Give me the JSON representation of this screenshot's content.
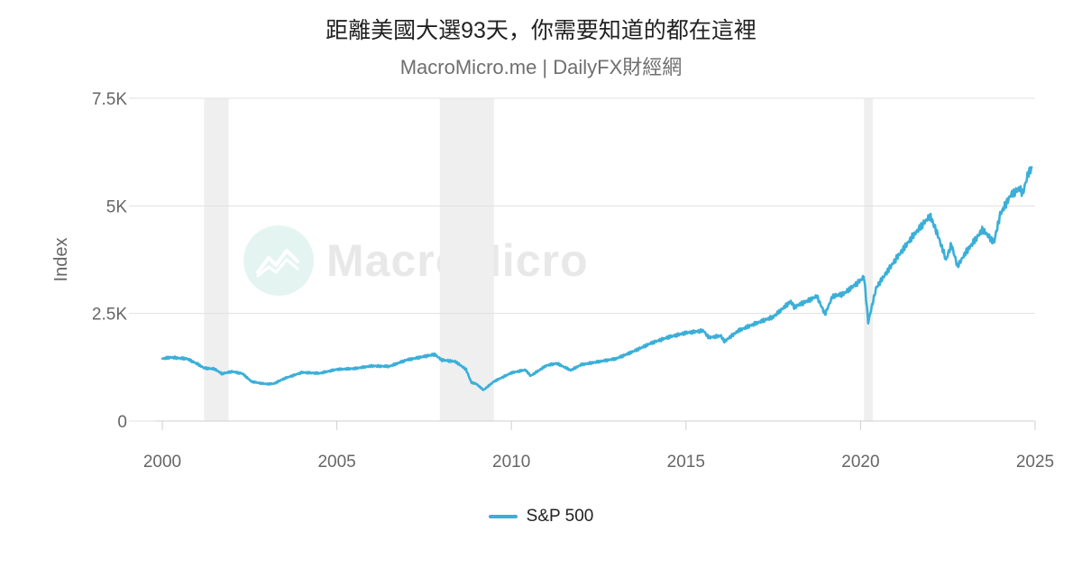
{
  "header": {
    "title": "距離美國大選93天，你需要知道的都在這裡",
    "subtitle": "MacroMicro.me | DailyFX財經網"
  },
  "watermark": {
    "text": "MacroMicro"
  },
  "colors": {
    "series": "#3bafd8",
    "recession": "#efefef",
    "grid": "#e0e0e0"
  },
  "chart_data": {
    "type": "line",
    "title": "距離美國大選93天，你需要知道的都在這裡",
    "subtitle": "MacroMicro.me | DailyFX財經網",
    "ylabel": "Index",
    "xlabel": "",
    "xlim": [
      2000,
      2025
    ],
    "ylim": [
      0,
      7500
    ],
    "yticks": [
      0,
      2500,
      5000,
      7500
    ],
    "ytick_labels": [
      "0",
      "2.5K",
      "5K",
      "7.5K"
    ],
    "xticks": [
      2000,
      2005,
      2010,
      2015,
      2020,
      2025
    ],
    "xtick_labels": [
      "2000",
      "2005",
      "2010",
      "2015",
      "2020",
      "2025"
    ],
    "grid": true,
    "legend_position": "bottom-center",
    "shaded_periods": [
      [
        2001.2,
        2001.9
      ],
      [
        2007.95,
        2009.5
      ],
      [
        2020.1,
        2020.35
      ]
    ],
    "series": [
      {
        "name": "S&P 500",
        "x": [
          2000.0,
          2000.25,
          2000.5,
          2000.7,
          2001.0,
          2001.2,
          2001.5,
          2001.7,
          2002.0,
          2002.3,
          2002.55,
          2002.8,
          2003.0,
          2003.2,
          2003.5,
          2004.0,
          2004.5,
          2005.0,
          2005.5,
          2006.0,
          2006.5,
          2007.0,
          2007.5,
          2007.8,
          2008.0,
          2008.4,
          2008.7,
          2008.85,
          2009.0,
          2009.2,
          2009.5,
          2010.0,
          2010.4,
          2010.55,
          2011.0,
          2011.3,
          2011.7,
          2012.0,
          2012.5,
          2013.0,
          2013.5,
          2014.0,
          2014.5,
          2015.0,
          2015.5,
          2015.65,
          2016.0,
          2016.1,
          2016.5,
          2017.0,
          2017.5,
          2018.0,
          2018.1,
          2018.5,
          2018.75,
          2018.98,
          2019.2,
          2019.5,
          2019.9,
          2020.1,
          2020.22,
          2020.45,
          2020.7,
          2021.0,
          2021.5,
          2021.99,
          2022.2,
          2022.45,
          2022.6,
          2022.78,
          2023.0,
          2023.5,
          2023.82,
          2024.0,
          2024.3,
          2024.55,
          2024.65,
          2024.8,
          2024.9
        ],
        "y": [
          1450,
          1480,
          1460,
          1450,
          1330,
          1230,
          1210,
          1100,
          1150,
          1100,
          920,
          880,
          860,
          870,
          990,
          1130,
          1110,
          1200,
          1220,
          1280,
          1270,
          1420,
          1500,
          1550,
          1420,
          1380,
          1200,
          900,
          860,
          720,
          920,
          1120,
          1190,
          1050,
          1290,
          1340,
          1180,
          1310,
          1380,
          1450,
          1620,
          1810,
          1950,
          2050,
          2100,
          1940,
          1980,
          1850,
          2100,
          2270,
          2420,
          2780,
          2650,
          2800,
          2900,
          2480,
          2900,
          2950,
          3200,
          3350,
          2300,
          3100,
          3400,
          3750,
          4300,
          4770,
          4350,
          3750,
          4100,
          3600,
          3900,
          4450,
          4150,
          4800,
          5250,
          5400,
          5300,
          5750,
          5900
        ]
      }
    ]
  }
}
